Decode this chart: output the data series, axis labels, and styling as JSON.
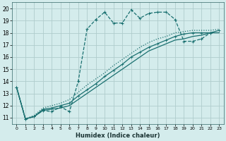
{
  "xlabel": "Humidex (Indice chaleur)",
  "bg_color": "#d4ecec",
  "grid_color": "#b0cccc",
  "line_color": "#1a7070",
  "xlim": [
    -0.5,
    23.5
  ],
  "ylim": [
    10.5,
    20.5
  ],
  "xticks": [
    0,
    1,
    2,
    3,
    4,
    5,
    6,
    7,
    8,
    9,
    10,
    11,
    12,
    13,
    14,
    15,
    16,
    17,
    18,
    19,
    20,
    21,
    22,
    23
  ],
  "yticks": [
    11,
    12,
    13,
    14,
    15,
    16,
    17,
    18,
    19,
    20
  ],
  "s1_x": [
    0,
    1,
    2,
    3,
    4,
    5,
    6,
    7,
    8,
    9,
    10,
    11,
    12,
    13,
    14,
    15,
    16,
    17,
    18,
    19,
    20,
    21,
    22
  ],
  "s1_y": [
    13.5,
    10.9,
    11.1,
    11.6,
    11.5,
    11.9,
    11.5,
    14.0,
    18.3,
    19.1,
    19.7,
    18.8,
    18.8,
    19.9,
    19.2,
    19.6,
    19.7,
    19.7,
    19.1,
    17.3,
    17.3,
    17.5,
    18.0
  ],
  "s2_x": [
    0,
    1,
    2,
    3,
    4,
    5,
    6,
    7,
    8,
    9,
    10,
    11,
    12,
    13,
    14,
    15,
    16,
    17,
    18,
    19,
    20,
    21,
    22,
    23
  ],
  "s2_y": [
    13.5,
    10.9,
    11.1,
    11.6,
    11.7,
    11.8,
    12.0,
    12.5,
    13.0,
    13.5,
    14.0,
    14.5,
    15.0,
    15.5,
    16.0,
    16.5,
    16.8,
    17.1,
    17.4,
    17.5,
    17.7,
    17.8,
    18.0,
    18.0
  ],
  "s3_x": [
    0,
    1,
    2,
    3,
    4,
    5,
    6,
    7,
    8,
    9,
    10,
    11,
    12,
    13,
    14,
    15,
    16,
    17,
    18,
    19,
    20,
    21,
    22,
    23
  ],
  "s3_y": [
    13.5,
    10.9,
    11.1,
    11.7,
    11.8,
    12.0,
    12.2,
    12.8,
    13.3,
    13.8,
    14.4,
    14.9,
    15.4,
    16.0,
    16.4,
    16.8,
    17.1,
    17.4,
    17.7,
    17.9,
    18.0,
    18.0,
    18.0,
    18.2
  ],
  "s4_x": [
    0,
    1,
    2,
    3,
    4,
    5,
    6,
    7,
    8,
    9,
    10,
    11,
    12,
    13,
    14,
    15,
    16,
    17,
    18,
    19,
    20,
    21,
    22,
    23
  ],
  "s4_y": [
    13.5,
    10.9,
    11.2,
    11.8,
    12.0,
    12.2,
    12.5,
    13.1,
    13.7,
    14.2,
    14.7,
    15.3,
    15.8,
    16.3,
    16.8,
    17.2,
    17.5,
    17.7,
    18.0,
    18.1,
    18.2,
    18.2,
    18.2,
    18.3
  ]
}
